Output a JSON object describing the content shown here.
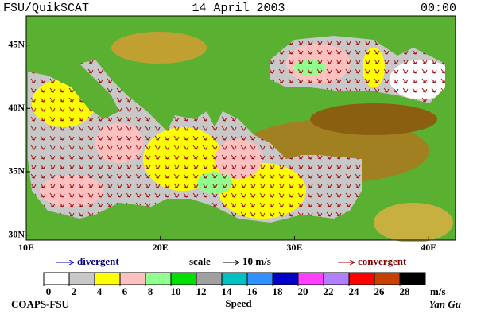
{
  "header": {
    "left": "FSU/QuikSCAT",
    "center": "14 April 2003",
    "right": "00:00"
  },
  "map": {
    "xlim": [
      10,
      42
    ],
    "ylim": [
      29.6,
      47.3
    ],
    "xticks": [
      {
        "value": 10,
        "label": "10E"
      },
      {
        "value": 20,
        "label": "20E"
      },
      {
        "value": 30,
        "label": "30E"
      },
      {
        "value": 40,
        "label": "40E"
      }
    ],
    "yticks": [
      {
        "value": 45,
        "label": "45N"
      },
      {
        "value": 40,
        "label": "40N"
      },
      {
        "value": 35,
        "label": "35N"
      },
      {
        "value": 30,
        "label": "30N"
      }
    ]
  },
  "legend": {
    "divergent": "divergent",
    "scale": "scale",
    "scale_value": "10 m/s",
    "convergent": "convergent"
  },
  "colorbar": {
    "ticks": [
      0,
      2,
      4,
      6,
      8,
      10,
      12,
      14,
      16,
      18,
      20,
      22,
      24,
      26,
      28
    ],
    "colors": [
      "#ffffff",
      "#c8c8c8",
      "#ffff00",
      "#ffc0c0",
      "#90ff90",
      "#00e000",
      "#a0a0a0",
      "#00c0c0",
      "#3090ff",
      "#0000c8",
      "#ff40ff",
      "#b080ff",
      "#ff0000",
      "#c84000",
      "#000000"
    ],
    "unit": "m/s",
    "label": "Speed"
  },
  "footer": {
    "left": "COAPS-FSU",
    "right": "Yan Gu"
  }
}
